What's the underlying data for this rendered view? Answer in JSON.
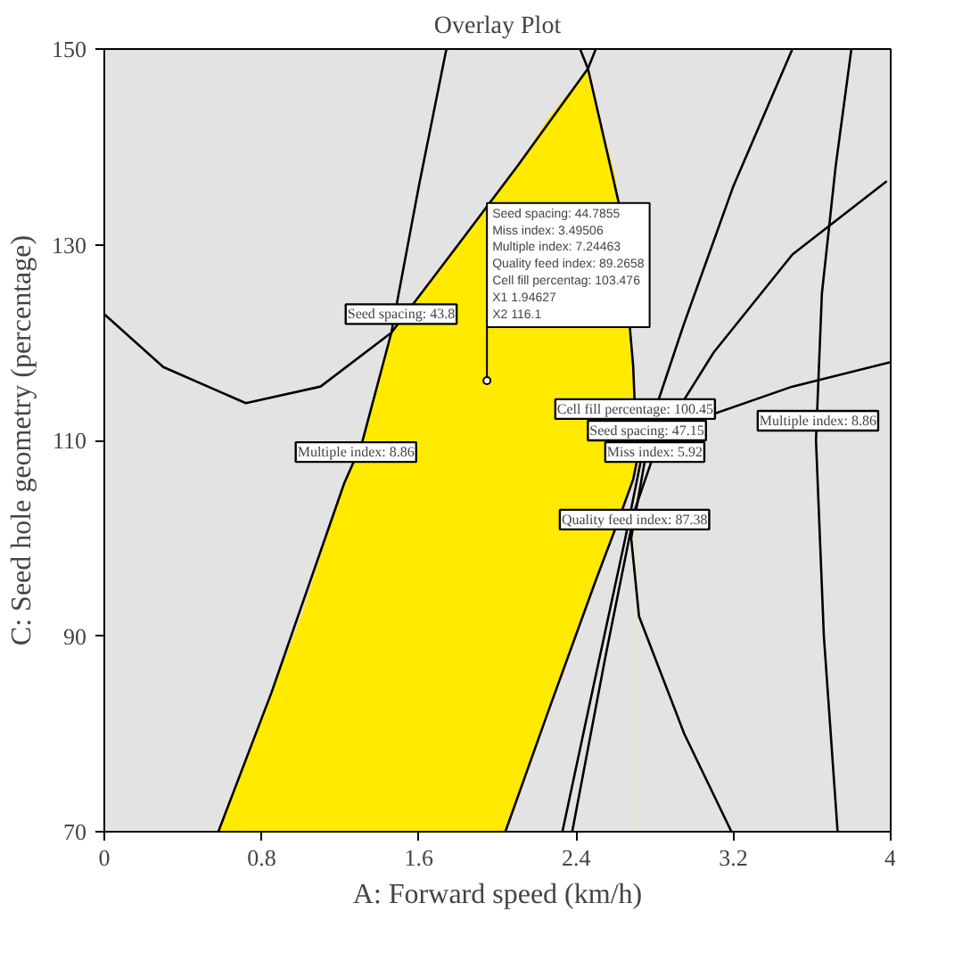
{
  "chart_data": {
    "type": "line",
    "title": "Overlay Plot",
    "xlabel": "A: Forward speed (km/h)",
    "ylabel": "C: Seed hole geometry (percentage)",
    "xlim": [
      0,
      4
    ],
    "ylim": [
      70,
      150
    ],
    "xticks": [
      0,
      0.8,
      1.6,
      2.4,
      3.2,
      4
    ],
    "yticks": [
      70,
      90,
      110,
      130,
      150
    ],
    "grid": false,
    "marker": "none",
    "line_style": "solid",
    "series": [
      {
        "type": "area",
        "color": "#ffea00",
        "x": [
          0.58,
          0.85,
          1.0,
          1.22,
          1.31,
          1.46,
          1.8,
          2.04,
          2.1,
          2.26,
          2.4,
          2.46,
          2.5,
          2.6,
          2.69,
          2.71
        ],
        "values": [
          70,
          84.2,
          92,
          105.6,
          109.7,
          121,
          130,
          136.5,
          138,
          143,
          146.5,
          148,
          144.5,
          137,
          117.6,
          108
        ]
      },
      {
        "type": "area",
        "color": "#e3e3e3",
        "x": [
          2.04,
          2.1,
          2.26,
          2.4,
          2.46,
          2.5,
          2.6,
          2.69,
          2.71
        ],
        "values": [
          70,
          73,
          82.4,
          90,
          93.5,
          95.7,
          101,
          106,
          108
        ]
      },
      {
        "color": "#000000",
        "x": [
          0,
          0.3,
          0.72,
          1.1,
          1.46,
          1.8,
          2.1,
          2.46,
          2.5
        ],
        "values": [
          122.9,
          117.5,
          113.8,
          115.5,
          121,
          130,
          138,
          148,
          150
        ]
      },
      {
        "color": "#000000",
        "x": [
          0.58,
          0.85,
          1.22,
          1.31,
          1.46,
          1.6,
          1.74
        ],
        "values": [
          70,
          84.2,
          105.6,
          109.7,
          121,
          136,
          150
        ]
      },
      {
        "color": "#000000",
        "x": [
          2.04,
          2.26,
          2.5,
          2.6,
          2.69,
          2.71,
          2.69,
          2.62,
          2.46,
          2.42
        ],
        "values": [
          70,
          82.4,
          95.7,
          101,
          106,
          108,
          117.6,
          134,
          148,
          150
        ]
      },
      {
        "color": "#000000",
        "x": [
          2.33,
          2.5,
          2.65,
          2.75,
          2.95,
          3.2,
          3.5
        ],
        "values": [
          70,
          86,
          100,
          110,
          122,
          136,
          150
        ]
      },
      {
        "color": "#000000",
        "x": [
          2.38,
          2.55,
          2.7,
          2.82,
          3.1,
          3.5,
          3.98
        ],
        "values": [
          70,
          88,
          103,
          110,
          119,
          129,
          136.5
        ]
      },
      {
        "color": "#000000",
        "x": [
          3.19,
          2.95,
          2.72,
          2.68,
          2.75,
          3.0,
          3.5,
          4.0
        ],
        "values": [
          70,
          80,
          92,
          100,
          108,
          112,
          115.5,
          118
        ]
      },
      {
        "color": "#000000",
        "x": [
          3.73,
          3.66,
          3.62,
          3.65,
          3.72,
          3.8
        ],
        "values": [
          70,
          90,
          110,
          125,
          138,
          150
        ]
      }
    ],
    "annotations": [
      {
        "text": "Seed spacing: 43.8",
        "x": 1.51,
        "y": 122.9
      },
      {
        "text": "Multiple index: 8.86",
        "x": 1.28,
        "y": 108.8
      },
      {
        "text": "Cell fill percentage: 100.45",
        "x": 2.7,
        "y": 113.2
      },
      {
        "text": "Seed spacing: 47.15",
        "x": 2.76,
        "y": 111
      },
      {
        "text": "Miss index: 5.92",
        "x": 2.8,
        "y": 108.8
      },
      {
        "text": "Quality feed index: 87.38",
        "x": 2.697,
        "y": 101.9
      },
      {
        "text": "Multiple index: 8.86",
        "x": 3.63,
        "y": 112
      },
      {
        "text": "Seed spacing: 44.7855\nMiss index: 3.49506\nMultiple index: 7.24463\nQuality feed index: 89.2658\nCell fill percentag: 103.476\nX1 1.94627\nX2 116.1",
        "x": 1.94627,
        "y": 116.1
      }
    ]
  }
}
